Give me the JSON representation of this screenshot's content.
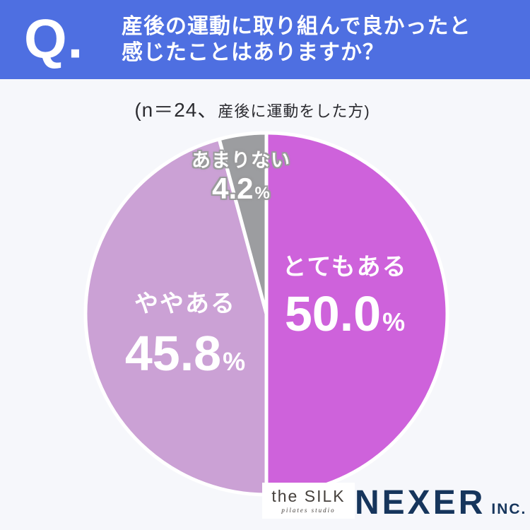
{
  "header": {
    "q_mark": "Q.",
    "title_line1": "産後の運動に取り組んで良かったと",
    "title_line2": "感じたことはありますか？",
    "bg_color": "#4E6FE1"
  },
  "note": {
    "prefix": "(n＝24、",
    "suffix": "産後に運動をした方)"
  },
  "chart_data": {
    "type": "pie",
    "title": "産後の運動に取り組んで良かったと感じたことはありますか？",
    "note": "(n＝24、産後に運動をした方)",
    "n": 24,
    "start_angle": "12-oclock",
    "direction": "clockwise",
    "separator_color": "#FFFFFF",
    "background_color": "#F6F7FB",
    "slices": [
      {
        "label": "とてもある",
        "value": 50.0,
        "display": "50.0",
        "unit": "%",
        "color": "#CE62DB"
      },
      {
        "label": "ややある",
        "value": 45.8,
        "display": "45.8",
        "unit": "%",
        "color": "#CBA1D5"
      },
      {
        "label": "あまりない",
        "value": 4.2,
        "display": "4.2",
        "unit": "%",
        "color": "#9C9DA0"
      }
    ]
  },
  "footer": {
    "silk": {
      "name": "the SILK",
      "tagline": "pilates studio"
    },
    "nexer": {
      "name": "NEXER",
      "suffix": "INC.",
      "color": "#16355C"
    }
  }
}
